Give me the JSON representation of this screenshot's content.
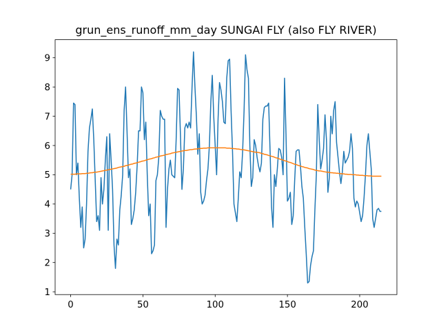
{
  "chart_data": {
    "type": "line",
    "title": "grun_ens_runoff_mm_day SUNGAI FLY (also FLY RIVER)",
    "x": [
      0,
      1,
      2,
      3,
      4,
      5,
      6,
      7,
      8,
      9,
      10,
      11,
      12,
      13,
      14,
      15,
      16,
      17,
      18,
      19,
      20,
      21,
      22,
      23,
      24,
      25,
      26,
      27,
      28,
      29,
      30,
      31,
      32,
      33,
      34,
      35,
      36,
      37,
      38,
      39,
      40,
      41,
      42,
      43,
      44,
      45,
      46,
      47,
      48,
      49,
      50,
      51,
      52,
      53,
      54,
      55,
      56,
      57,
      58,
      59,
      60,
      61,
      62,
      63,
      64,
      65,
      66,
      67,
      68,
      69,
      70,
      71,
      72,
      73,
      74,
      75,
      76,
      77,
      78,
      79,
      80,
      81,
      82,
      83,
      84,
      85,
      86,
      87,
      88,
      89,
      90,
      91,
      92,
      93,
      94,
      95,
      96,
      97,
      98,
      99,
      100,
      101,
      102,
      103,
      104,
      105,
      106,
      107,
      108,
      109,
      110,
      111,
      112,
      113,
      114,
      115,
      116,
      117,
      118,
      119,
      120,
      121,
      122,
      123,
      124,
      125,
      126,
      127,
      128,
      129,
      130,
      131,
      132,
      133,
      134,
      135,
      136,
      137,
      138,
      139,
      140,
      141,
      142,
      143,
      144,
      145,
      146,
      147,
      148,
      149,
      150,
      151,
      152,
      153,
      154,
      155,
      156,
      157,
      158,
      159,
      160,
      161,
      162,
      163,
      164,
      165,
      166,
      167,
      168,
      169,
      170,
      171,
      172,
      173,
      174,
      175,
      176,
      177,
      178,
      179,
      180,
      181,
      182,
      183,
      184,
      185,
      186,
      187,
      188,
      189,
      190,
      191,
      192,
      193,
      194,
      195,
      196,
      197,
      198,
      199,
      200,
      201,
      202,
      203,
      204,
      205,
      206,
      207,
      208,
      209,
      210,
      211,
      212,
      213,
      214,
      215
    ],
    "series": [
      {
        "color": "#1f77b4",
        "values": [
          4.5,
          5.0,
          7.45,
          7.4,
          5.0,
          5.4,
          4.2,
          3.2,
          3.9,
          2.5,
          2.8,
          4.0,
          5.8,
          6.6,
          6.9,
          7.25,
          6.2,
          4.8,
          3.4,
          3.6,
          3.1,
          4.9,
          4.0,
          4.5,
          5.5,
          6.3,
          3.1,
          6.4,
          5.5,
          4.5,
          2.6,
          1.8,
          2.8,
          2.6,
          3.8,
          4.3,
          5.0,
          7.2,
          8.0,
          6.5,
          4.9,
          5.2,
          3.3,
          3.5,
          3.8,
          4.4,
          5.3,
          6.5,
          6.5,
          8.0,
          7.8,
          6.2,
          6.8,
          5.0,
          3.6,
          4.0,
          2.3,
          2.4,
          2.6,
          4.8,
          5.0,
          5.6,
          7.2,
          7.0,
          6.9,
          6.9,
          3.2,
          4.5,
          5.2,
          5.5,
          5.0,
          4.95,
          4.9,
          6.2,
          7.95,
          7.9,
          6.3,
          4.5,
          5.2,
          6.6,
          6.75,
          6.6,
          6.8,
          6.6,
          8.0,
          9.2,
          8.0,
          7.0,
          5.7,
          6.4,
          4.4,
          4.0,
          4.1,
          4.3,
          4.8,
          5.2,
          6.0,
          7.5,
          8.4,
          7.0,
          6.0,
          5.0,
          6.9,
          8.15,
          7.9,
          7.5,
          6.8,
          6.75,
          8.3,
          8.9,
          8.95,
          7.2,
          5.8,
          4.0,
          3.7,
          3.4,
          4.2,
          5.1,
          4.9,
          5.8,
          7.2,
          9.1,
          8.6,
          8.3,
          6.0,
          4.6,
          4.9,
          6.2,
          6.0,
          5.6,
          5.3,
          5.1,
          5.4,
          6.9,
          7.3,
          7.35,
          7.35,
          7.45,
          5.8,
          3.9,
          3.2,
          5.0,
          4.6,
          5.2,
          5.9,
          5.85,
          5.6,
          5.0,
          8.3,
          6.4,
          4.1,
          4.2,
          4.4,
          3.3,
          3.6,
          4.8,
          5.8,
          5.85,
          5.85,
          5.3,
          4.6,
          4.2,
          3.2,
          2.3,
          1.3,
          1.35,
          1.9,
          2.2,
          2.4,
          3.8,
          5.0,
          7.4,
          6.2,
          5.2,
          5.5,
          5.9,
          7.05,
          6.2,
          4.4,
          4.9,
          7.0,
          6.4,
          7.2,
          7.5,
          6.1,
          5.6,
          5.1,
          4.7,
          5.1,
          5.8,
          5.4,
          5.5,
          5.6,
          5.8,
          6.4,
          5.9,
          4.2,
          3.9,
          4.1,
          4.0,
          3.7,
          3.4,
          3.6,
          4.2,
          5.0,
          6.0,
          6.4,
          5.8,
          5.2,
          3.5,
          3.2,
          3.5,
          3.8,
          3.85,
          3.75,
          3.75
        ]
      },
      {
        "color": "#ff7f0e",
        "values": [
          5.02,
          5.02,
          5.02,
          5.02,
          5.03,
          5.03,
          5.03,
          5.03,
          5.04,
          5.04,
          5.04,
          5.05,
          5.05,
          5.06,
          5.07,
          5.07,
          5.08,
          5.09,
          5.09,
          5.1,
          5.11,
          5.12,
          5.13,
          5.14,
          5.15,
          5.16,
          5.17,
          5.18,
          5.19,
          5.2,
          5.21,
          5.22,
          5.23,
          5.25,
          5.26,
          5.27,
          5.28,
          5.29,
          5.31,
          5.32,
          5.33,
          5.35,
          5.36,
          5.37,
          5.39,
          5.4,
          5.41,
          5.43,
          5.44,
          5.46,
          5.47,
          5.48,
          5.5,
          5.51,
          5.53,
          5.54,
          5.55,
          5.57,
          5.58,
          5.6,
          5.61,
          5.62,
          5.64,
          5.65,
          5.66,
          5.67,
          5.69,
          5.7,
          5.71,
          5.72,
          5.74,
          5.75,
          5.76,
          5.77,
          5.78,
          5.79,
          5.8,
          5.81,
          5.82,
          5.83,
          5.83,
          5.84,
          5.85,
          5.86,
          5.86,
          5.87,
          5.88,
          5.88,
          5.89,
          5.89,
          5.9,
          5.9,
          5.91,
          5.91,
          5.91,
          5.92,
          5.92,
          5.92,
          5.92,
          5.92,
          5.92,
          5.92,
          5.92,
          5.92,
          5.92,
          5.92,
          5.92,
          5.92,
          5.91,
          5.91,
          5.91,
          5.9,
          5.9,
          5.89,
          5.89,
          5.88,
          5.88,
          5.87,
          5.86,
          5.86,
          5.85,
          5.84,
          5.83,
          5.82,
          5.81,
          5.8,
          5.79,
          5.78,
          5.77,
          5.77,
          5.76,
          5.75,
          5.73,
          5.72,
          5.7,
          5.69,
          5.68,
          5.66,
          5.65,
          5.63,
          5.62,
          5.6,
          5.58,
          5.57,
          5.55,
          5.53,
          5.52,
          5.5,
          5.48,
          5.47,
          5.45,
          5.43,
          5.42,
          5.4,
          5.38,
          5.36,
          5.35,
          5.33,
          5.31,
          5.3,
          5.28,
          5.27,
          5.25,
          5.24,
          5.23,
          5.21,
          5.2,
          5.19,
          5.18,
          5.16,
          5.15,
          5.14,
          5.13,
          5.13,
          5.12,
          5.11,
          5.1,
          5.09,
          5.09,
          5.08,
          5.07,
          5.07,
          5.06,
          5.06,
          5.05,
          5.05,
          5.04,
          5.04,
          5.03,
          5.03,
          5.02,
          5.02,
          5.01,
          5.01,
          5.01,
          5.0,
          5.0,
          5.0,
          4.99,
          4.99,
          4.98,
          4.98,
          4.98,
          4.97,
          4.97,
          4.97,
          4.96,
          4.96,
          4.96,
          4.95,
          4.95,
          4.95,
          4.95,
          4.95,
          4.95,
          4.95
        ]
      }
    ],
    "xlim": [
      -10.75,
      225.75
    ],
    "xticks": [
      0,
      50,
      100,
      150,
      200
    ],
    "ylim": [
      0.904,
      9.616
    ],
    "yticks": [
      1,
      2,
      3,
      4,
      5,
      6,
      7,
      8,
      9
    ],
    "grid": false
  }
}
